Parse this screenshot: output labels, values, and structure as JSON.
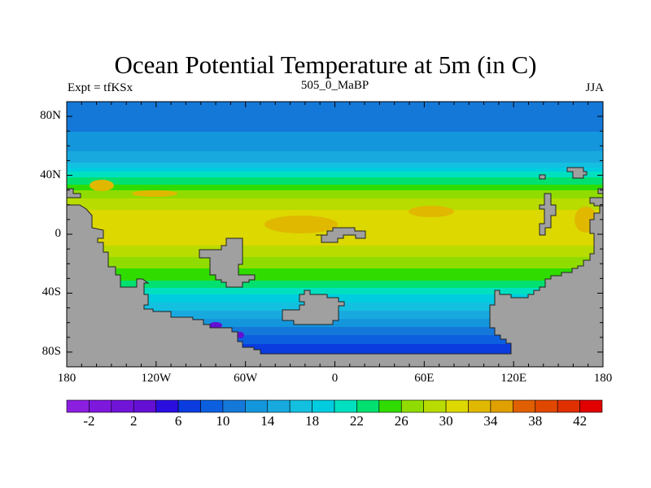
{
  "chart_data": {
    "type": "heatmap",
    "title": "Ocean Potential Temperature at 5m (in C)",
    "subtitle_left": "Expt = tfKSx",
    "subtitle_center": "505_0_MaBP",
    "subtitle_right": "JJA",
    "xlabel": "",
    "ylabel": "",
    "xlim": [
      -180,
      180
    ],
    "ylim": [
      -90,
      90
    ],
    "x_ticks": [
      {
        "value": -180,
        "label": "180"
      },
      {
        "value": -120,
        "label": "120W"
      },
      {
        "value": -60,
        "label": "60W"
      },
      {
        "value": 0,
        "label": "0"
      },
      {
        "value": 60,
        "label": "60E"
      },
      {
        "value": 120,
        "label": "120E"
      },
      {
        "value": 180,
        "label": "180"
      }
    ],
    "y_ticks": [
      {
        "value": 80,
        "label": "80N"
      },
      {
        "value": 40,
        "label": "40N"
      },
      {
        "value": 0,
        "label": "0"
      },
      {
        "value": -40,
        "label": "40S"
      },
      {
        "value": -80,
        "label": "80S"
      }
    ],
    "colorbar": {
      "levels": [
        -2,
        0,
        2,
        4,
        6,
        8,
        10,
        12,
        14,
        16,
        18,
        20,
        22,
        24,
        26,
        28,
        30,
        32,
        34,
        36,
        38,
        40,
        42
      ],
      "labels": [
        {
          "value": -2,
          "label": "-2"
        },
        {
          "value": 2,
          "label": "2"
        },
        {
          "value": 6,
          "label": "6"
        },
        {
          "value": 10,
          "label": "10"
        },
        {
          "value": 14,
          "label": "14"
        },
        {
          "value": 18,
          "label": "18"
        },
        {
          "value": 22,
          "label": "22"
        },
        {
          "value": 26,
          "label": "26"
        },
        {
          "value": 30,
          "label": "30"
        },
        {
          "value": 34,
          "label": "34"
        },
        {
          "value": 38,
          "label": "38"
        },
        {
          "value": 42,
          "label": "42"
        }
      ],
      "colors": [
        "#8c1ee0",
        "#7d18dc",
        "#7014d8",
        "#6410d4",
        "#2a0ee0",
        "#0a3ce0",
        "#0c60e0",
        "#1478d8",
        "#1496dc",
        "#18aadf",
        "#14c0e0",
        "#00cce0",
        "#00e0c0",
        "#00e070",
        "#30dc00",
        "#90dc00",
        "#b8dc00",
        "#dcd800",
        "#e0b800",
        "#e0a000",
        "#e06000",
        "#e04800",
        "#e03000",
        "#e00000"
      ]
    },
    "land_color": "#a0a0a0"
  }
}
